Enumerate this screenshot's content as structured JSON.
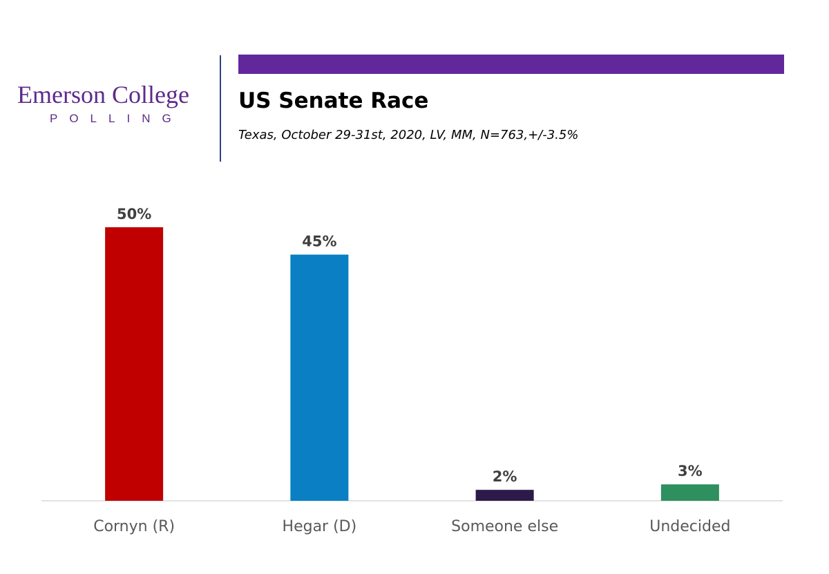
{
  "logo": {
    "name": "Emerson College",
    "sub": "POLLING"
  },
  "header": {
    "title": "US Senate Race",
    "subtitle": "Texas, October 29-31st, 2020, LV, MM,  N=763,+/-3.5%"
  },
  "colors": {
    "brand_purple": "#5e2a8c",
    "accent_bar": "#63279c",
    "divider": "#2d3f85",
    "axis": "#d9d9d9"
  },
  "chart_data": {
    "type": "bar",
    "categories": [
      "Cornyn (R)",
      "Hegar (D)",
      "Someone else",
      "Undecided"
    ],
    "values": [
      50,
      45,
      2,
      3
    ],
    "value_labels": [
      "50%",
      "45%",
      "2%",
      "3%"
    ],
    "bar_colors": [
      "#c00000",
      "#0a7fc3",
      "#2c1a4a",
      "#2e8f5f"
    ],
    "ylim": [
      0,
      50
    ],
    "grid": false,
    "legend": "none"
  }
}
